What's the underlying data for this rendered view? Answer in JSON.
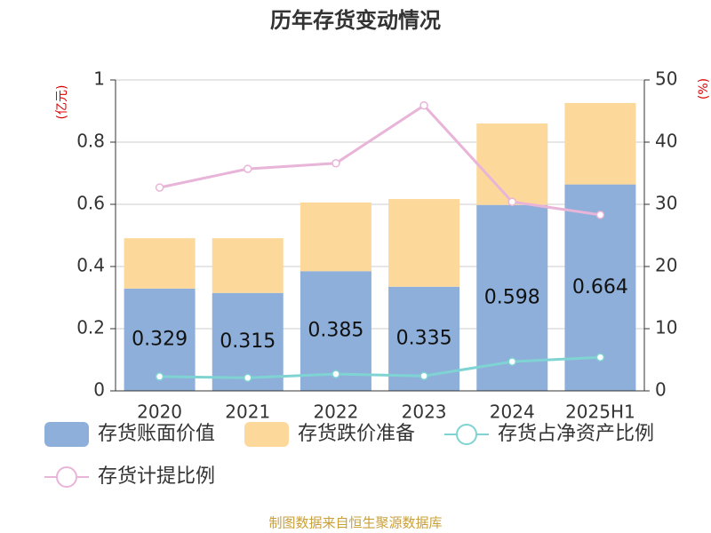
{
  "chart_data": {
    "type": "bar",
    "title": "历年存货变动情况",
    "y_label": "(亿元)",
    "y2_label": "(%)",
    "categories": [
      "2020",
      "2021",
      "2022",
      "2023",
      "2024",
      "2025H1"
    ],
    "series": [
      {
        "name": "存货账面价值",
        "type": "bar",
        "color": "#8eafd9",
        "values": [
          0.329,
          0.315,
          0.385,
          0.335,
          0.598,
          0.664
        ]
      },
      {
        "name": "存货跌价准备",
        "type": "bar",
        "color": "#fdd89b",
        "values": [
          0.162,
          0.176,
          0.221,
          0.282,
          0.262,
          0.262
        ]
      },
      {
        "name": "存货占净资产比例",
        "type": "line",
        "axis": "y2",
        "color": "#7fd3d3",
        "values": [
          2.3,
          2.1,
          2.7,
          2.4,
          4.7,
          5.4
        ]
      },
      {
        "name": "存货计提比例",
        "type": "line",
        "axis": "y2",
        "color": "#e8b4d8",
        "values": [
          32.7,
          35.7,
          36.6,
          45.9,
          30.4,
          28.3
        ]
      }
    ],
    "ylim": [
      0,
      1
    ],
    "yticks": [
      0,
      0.2,
      0.4,
      0.6,
      0.8,
      1
    ],
    "y2lim": [
      0,
      50
    ],
    "y2ticks": [
      0,
      10,
      20,
      30,
      40,
      50
    ],
    "grid": true,
    "source": "制图数据来自恒生聚源数据库"
  }
}
